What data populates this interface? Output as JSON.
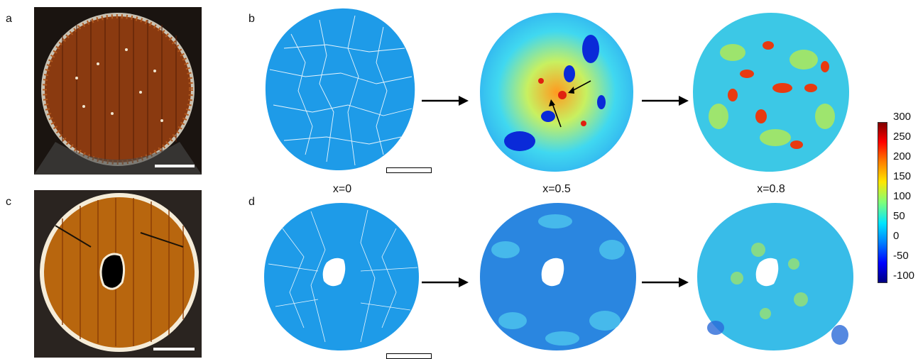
{
  "panel_labels": {
    "a": "a",
    "b": "b",
    "c": "c",
    "d": "d"
  },
  "captions": {
    "x0": "x=0",
    "x05": "x=0.5",
    "x08": "x=0.8"
  },
  "colorbar": {
    "ticks": [
      "300",
      "250",
      "200",
      "150",
      "100",
      "50",
      "0",
      "-50",
      "-100"
    ]
  }
}
